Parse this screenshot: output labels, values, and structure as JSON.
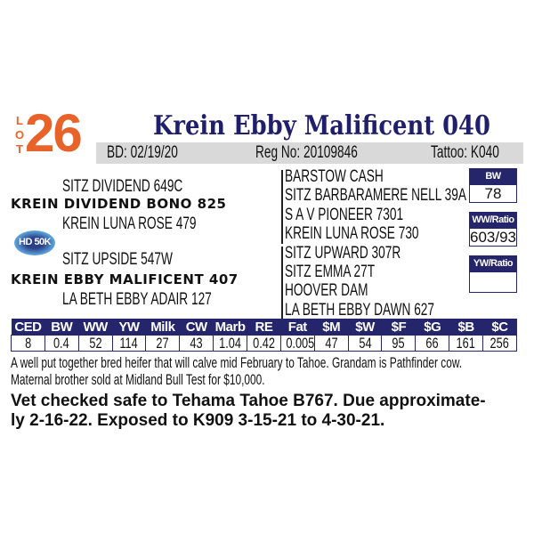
{
  "lot": {
    "label_letters": [
      "L",
      "O",
      "T"
    ],
    "number": "26"
  },
  "animal": {
    "name": "Krein Ebby Malificent 040",
    "bd": "BD: 02/19/20",
    "reg_no": "Reg No: 20109846",
    "tattoo": "Tattoo: K040"
  },
  "colors": {
    "accent_orange": "#e8632a",
    "navy": "#25256b",
    "gray_bar": "#d9d9d9"
  },
  "pedigree_left": {
    "sire_sire": "SITZ DIVIDEND 649C",
    "sire": "KREIN DIVIDEND BONO 825",
    "sire_dam": "KREIN LUNA ROSE 479",
    "dam_sire": "SITZ UPSIDE 547W",
    "dam": "KREIN EBBY MALIFICENT 407",
    "dam_dam": "LA BETH EBBY ADAIR 127"
  },
  "logo": {
    "text": "HD 50K"
  },
  "pedigree_right": [
    "BARSTOW CASH",
    "SITZ BARBARAMERE NELL 39A",
    "S A V PIONEER 7301",
    "KREIN LUNA ROSE 730",
    "SITZ UPWARD 307R",
    "SITZ EMMA 27T",
    "HOOVER DAM",
    "LA BETH EBBY DAWN 627"
  ],
  "boxes": [
    {
      "label": "BW",
      "value": "78"
    },
    {
      "label": "WW/Ratio",
      "value": "603/93"
    },
    {
      "label": "YW/Ratio",
      "value": ""
    }
  ],
  "epd": {
    "headers": [
      "CED",
      "BW",
      "WW",
      "YW",
      "Milk",
      "CW",
      "Marb",
      "RE",
      "Fat",
      "$M",
      "$W",
      "$F",
      "$G",
      "$B",
      "$C"
    ],
    "values": [
      "8",
      "0.4",
      "52",
      "114",
      "27",
      "43",
      "1.04",
      "0.42",
      "0.005",
      "47",
      "54",
      "95",
      "66",
      "161",
      "256"
    ]
  },
  "notes": {
    "line1": "A well put together bred heifer that will calve mid February to Tahoe. Grandam is Pathfinder cow.",
    "line2": "Maternal brother sold at Midland Bull Test for $10,000.",
    "bold_line1": "Vet checked safe to Tehama Tahoe B767. Due approximate-",
    "bold_line2": "ly 2-16-22. Exposed to K909 3-15-21 to 4-30-21."
  }
}
